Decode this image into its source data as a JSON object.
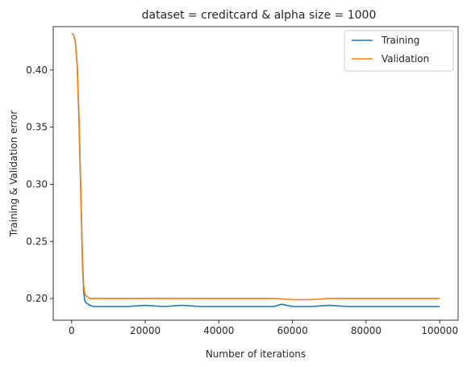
{
  "chart_data": {
    "type": "line",
    "title": "dataset = creditcard & alpha size = 1000",
    "xlabel": "Number of iterations",
    "ylabel": "Training & Validation error",
    "xlim": [
      -5000,
      105000
    ],
    "ylim": [
      0.181,
      0.438
    ],
    "xticks": [
      0,
      20000,
      40000,
      60000,
      80000,
      100000
    ],
    "xtick_labels": [
      "0",
      "20000",
      "40000",
      "60000",
      "80000",
      "100000"
    ],
    "yticks": [
      0.2,
      0.25,
      0.3,
      0.35,
      0.4
    ],
    "ytick_labels": [
      "0.20",
      "0.25",
      "0.30",
      "0.35",
      "0.40"
    ],
    "legend_position": "top-right",
    "grid": false,
    "series": [
      {
        "name": "Training",
        "color": "#1f77b4",
        "x": [
          0,
          500,
          1000,
          1500,
          2000,
          2500,
          3000,
          3300,
          3600,
          4000,
          5000,
          6000,
          8000,
          10000,
          15000,
          20000,
          25000,
          30000,
          35000,
          40000,
          45000,
          50000,
          55000,
          57000,
          60000,
          65000,
          70000,
          75000,
          80000,
          85000,
          90000,
          95000,
          100000
        ],
        "y": [
          0.432,
          0.431,
          0.425,
          0.405,
          0.355,
          0.29,
          0.225,
          0.205,
          0.198,
          0.196,
          0.194,
          0.193,
          0.193,
          0.193,
          0.193,
          0.194,
          0.193,
          0.194,
          0.193,
          0.193,
          0.193,
          0.193,
          0.193,
          0.195,
          0.193,
          0.193,
          0.194,
          0.193,
          0.193,
          0.193,
          0.193,
          0.193,
          0.193
        ]
      },
      {
        "name": "Validation",
        "color": "#ff7f0e",
        "x": [
          0,
          500,
          1000,
          1500,
          2000,
          2500,
          3000,
          3300,
          3600,
          4000,
          5000,
          6000,
          8000,
          10000,
          15000,
          20000,
          25000,
          30000,
          35000,
          40000,
          45000,
          50000,
          55000,
          60000,
          65000,
          70000,
          75000,
          80000,
          85000,
          90000,
          95000,
          100000
        ],
        "y": [
          0.432,
          0.431,
          0.425,
          0.405,
          0.36,
          0.295,
          0.23,
          0.21,
          0.204,
          0.202,
          0.2,
          0.2,
          0.2,
          0.2,
          0.2,
          0.2,
          0.2,
          0.2,
          0.2,
          0.2,
          0.2,
          0.2,
          0.2,
          0.199,
          0.199,
          0.2,
          0.2,
          0.2,
          0.2,
          0.2,
          0.2,
          0.2
        ]
      }
    ]
  }
}
